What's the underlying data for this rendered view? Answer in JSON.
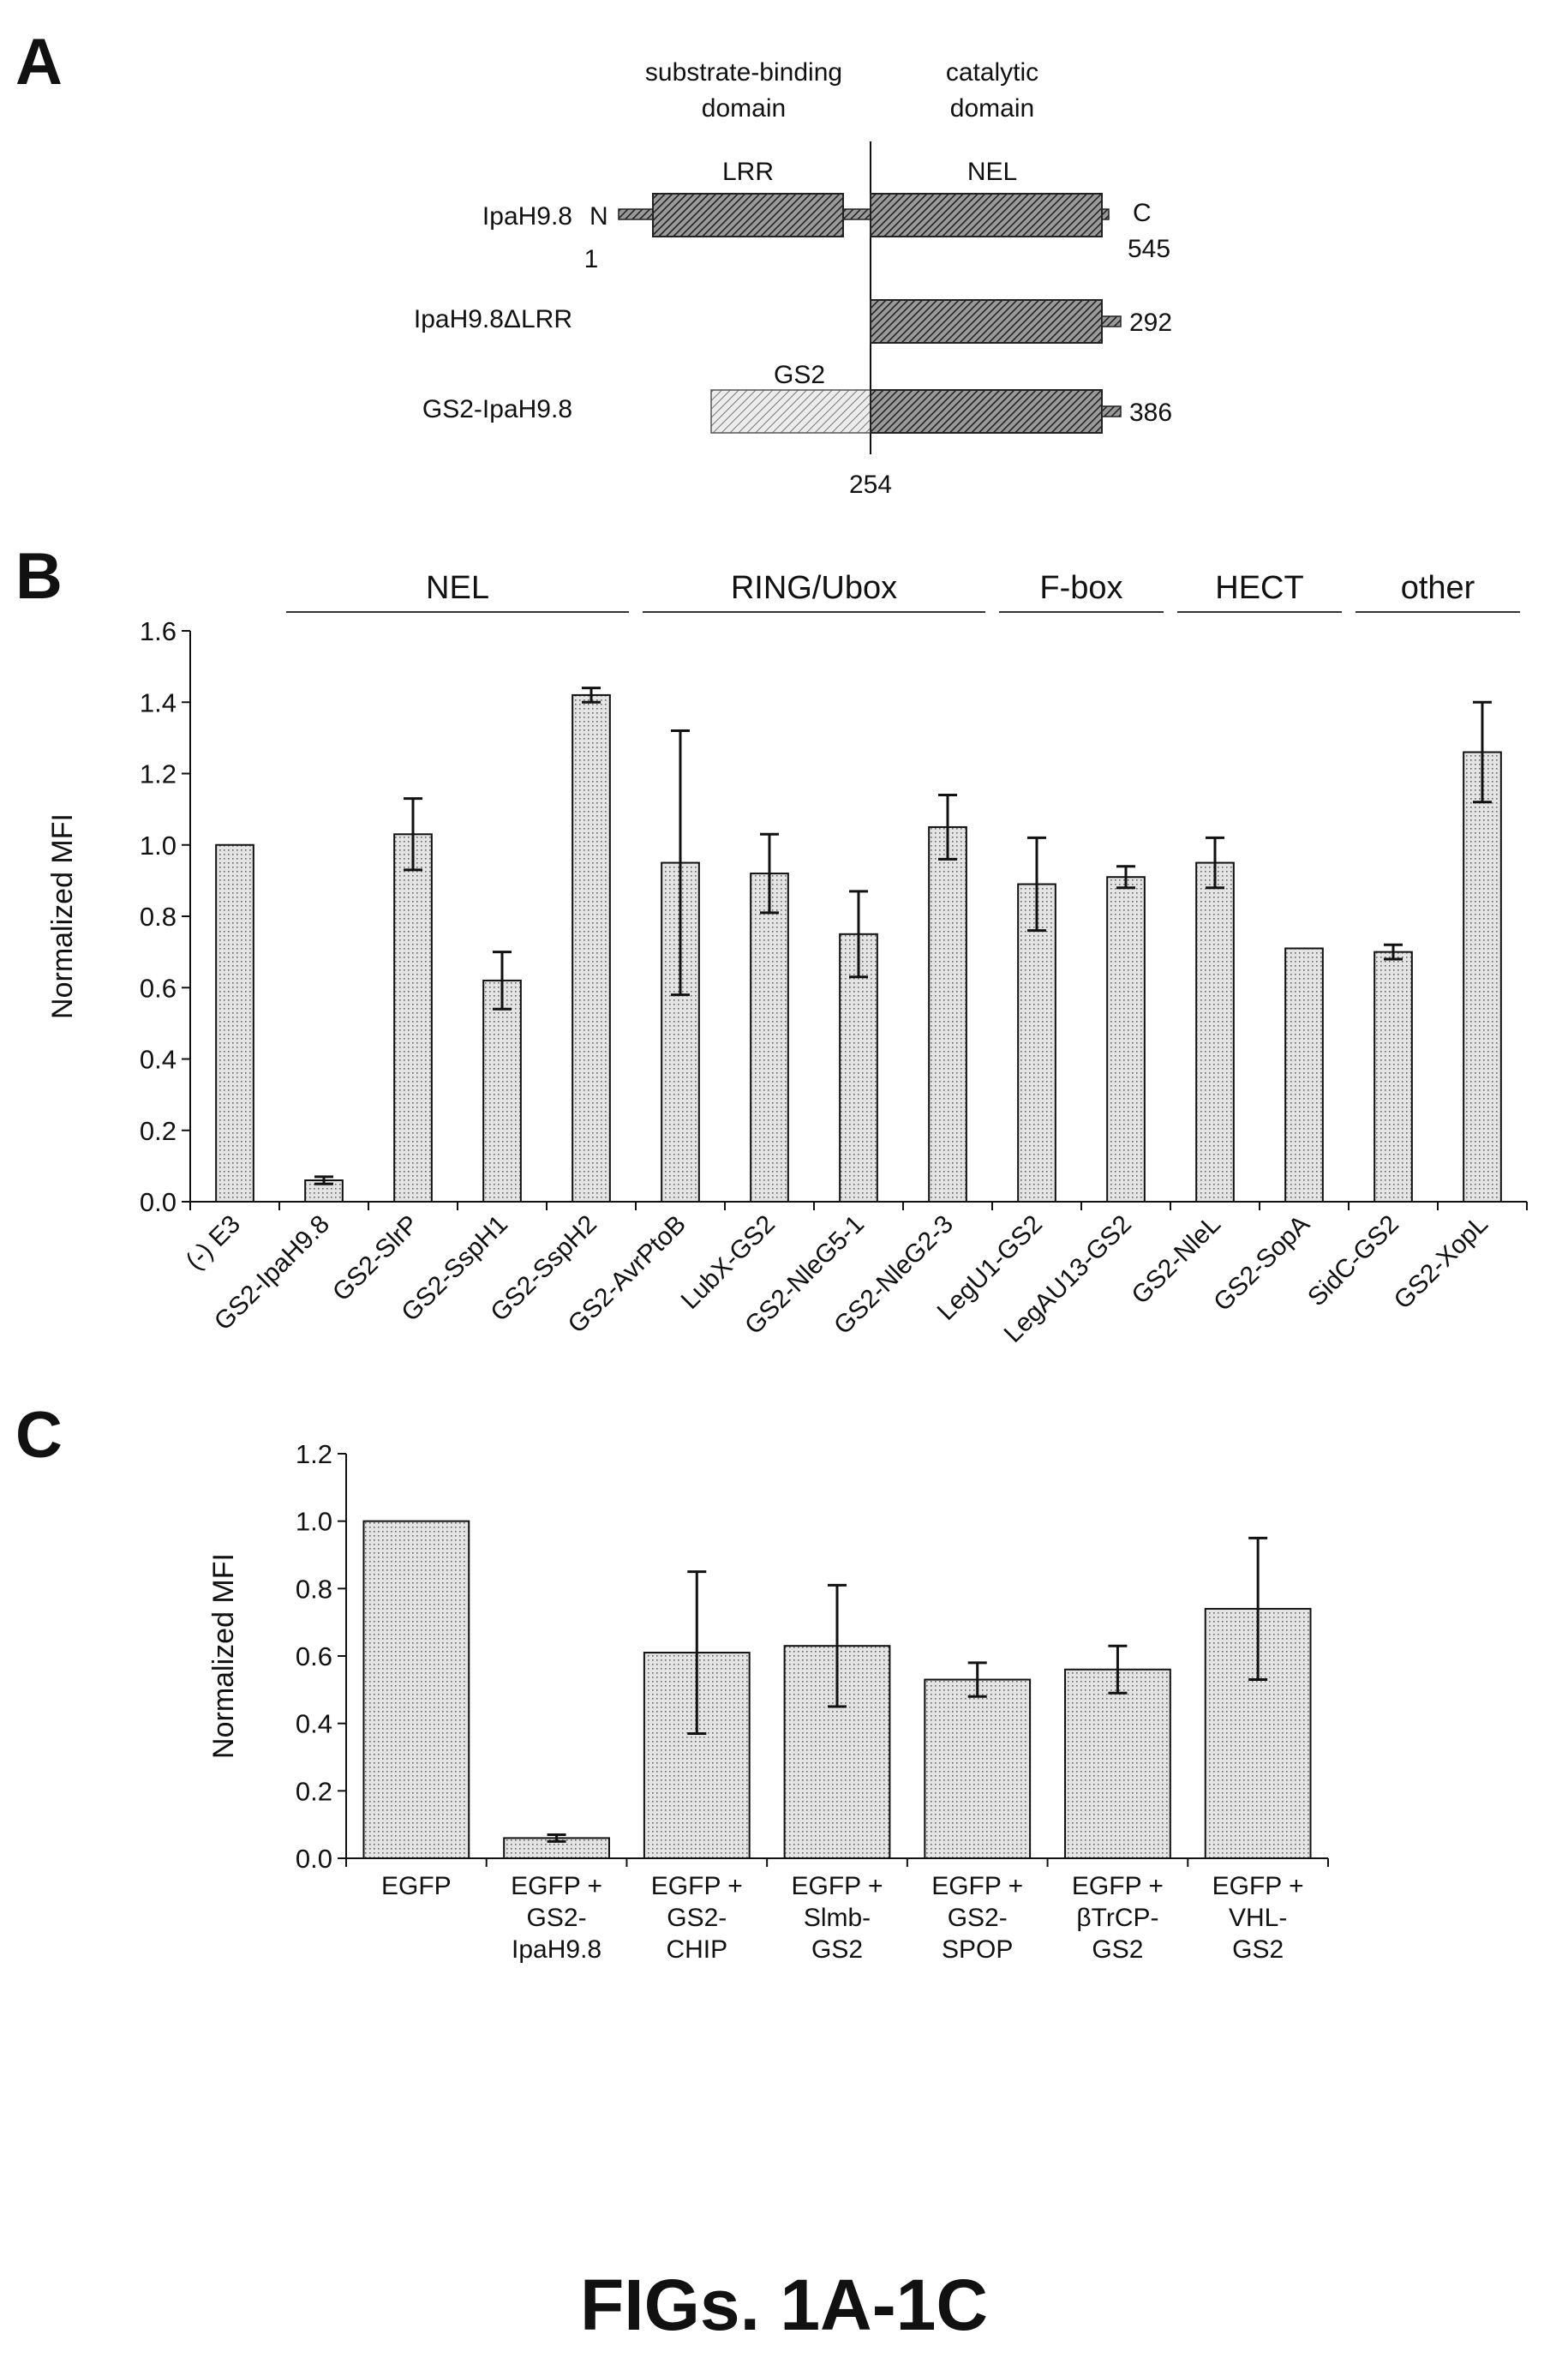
{
  "figure_caption": "FIGs. 1A-1C",
  "panel_a": {
    "letter": "A",
    "domain_labels": {
      "substrate_line1": "substrate-binding",
      "substrate_line2": "domain",
      "catalytic_line1": "catalytic",
      "catalytic_line2": "domain"
    },
    "region_labels": {
      "lrr": "LRR",
      "nel": "NEL",
      "gs2": "GS2"
    },
    "constructs": [
      {
        "name": "IpaH9.8",
        "n_label": "N",
        "c_label": "C",
        "start_label": "1",
        "end_label": "545"
      },
      {
        "name": "IpaH9.8ΔLRR",
        "end_label": "292"
      },
      {
        "name": "GS2-IpaH9.8",
        "end_label": "386"
      }
    ],
    "boundary_label": "254"
  },
  "chart_data": [
    {
      "panel": "B",
      "type": "bar",
      "ylabel": "Normalized MFI",
      "ylim": [
        0,
        1.6
      ],
      "yticks": [
        "0.0",
        "0.2",
        "0.4",
        "0.6",
        "0.8",
        "1.0",
        "1.2",
        "1.4",
        "1.6"
      ],
      "categories": [
        "(-) E3",
        "GS2-IpaH9.8",
        "GS2-SlrP",
        "GS2-SspH1",
        "GS2-SspH2",
        "GS2-AvrPtoB",
        "LubX-GS2",
        "GS2-NleG5-1",
        "GS2-NleG2-3",
        "LegU1-GS2",
        "LegAU13-GS2",
        "GS2-NleL",
        "GS2-SopA",
        "SidC-GS2",
        "GS2-XopL"
      ],
      "values": [
        1.0,
        0.06,
        1.03,
        0.62,
        1.42,
        0.95,
        0.92,
        0.75,
        1.05,
        0.89,
        0.91,
        0.95,
        0.71,
        0.7,
        1.26
      ],
      "errors": [
        0.0,
        0.01,
        0.1,
        0.08,
        0.02,
        0.37,
        0.11,
        0.12,
        0.09,
        0.13,
        0.03,
        0.07,
        0.0,
        0.02,
        0.14
      ],
      "groups": [
        {
          "label": "NEL",
          "from": 1,
          "to": 4
        },
        {
          "label": "RING/Ubox",
          "from": 5,
          "to": 8
        },
        {
          "label": "F-box",
          "from": 9,
          "to": 10
        },
        {
          "label": "HECT",
          "from": 11,
          "to": 12
        },
        {
          "label": "other",
          "from": 13,
          "to": 14
        }
      ]
    },
    {
      "panel": "C",
      "type": "bar",
      "ylabel": "Normalized MFI",
      "ylim": [
        0,
        1.2
      ],
      "yticks": [
        "0.0",
        "0.2",
        "0.4",
        "0.6",
        "0.8",
        "1.0",
        "1.2"
      ],
      "categories": [
        [
          "EGFP"
        ],
        [
          "EGFP +",
          "GS2-",
          "IpaH9.8"
        ],
        [
          "EGFP +",
          "GS2-",
          "CHIP"
        ],
        [
          "EGFP +",
          "Slmb-",
          "GS2"
        ],
        [
          "EGFP +",
          "GS2-",
          "SPOP"
        ],
        [
          "EGFP +",
          "βTrCP-",
          "GS2"
        ],
        [
          "EGFP +",
          "VHL-",
          "GS2"
        ]
      ],
      "values": [
        1.0,
        0.06,
        0.61,
        0.63,
        0.53,
        0.56,
        0.74
      ],
      "errors": [
        0.0,
        0.01,
        0.24,
        0.18,
        0.05,
        0.07,
        0.21
      ]
    }
  ]
}
